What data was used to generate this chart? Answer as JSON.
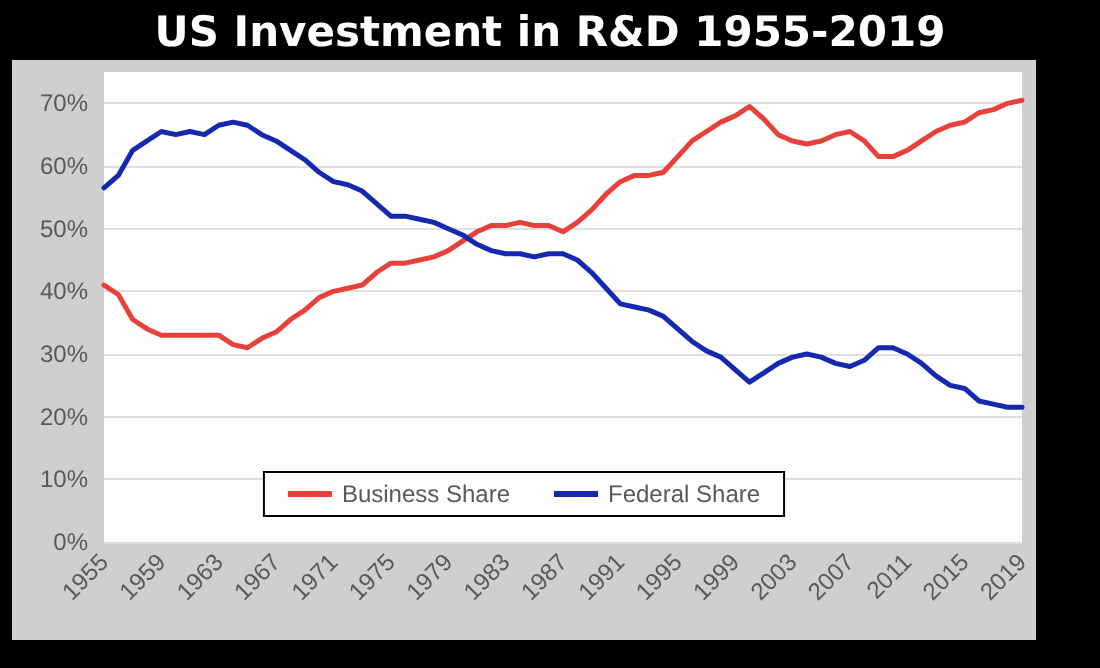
{
  "chart_data": {
    "type": "line",
    "title": "US Investment in R&D 1955-2019",
    "x": [
      1955,
      1956,
      1957,
      1958,
      1959,
      1960,
      1961,
      1962,
      1963,
      1964,
      1965,
      1966,
      1967,
      1968,
      1969,
      1970,
      1971,
      1972,
      1973,
      1974,
      1975,
      1976,
      1977,
      1978,
      1979,
      1980,
      1981,
      1982,
      1983,
      1984,
      1985,
      1986,
      1987,
      1988,
      1989,
      1990,
      1991,
      1992,
      1993,
      1994,
      1995,
      1996,
      1997,
      1998,
      1999,
      2000,
      2001,
      2002,
      2003,
      2004,
      2005,
      2006,
      2007,
      2008,
      2009,
      2010,
      2011,
      2012,
      2013,
      2014,
      2015,
      2016,
      2017,
      2018,
      2019
    ],
    "series": [
      {
        "name": "Business Share",
        "color": "#e8403a",
        "values": [
          41,
          39.5,
          35.5,
          34,
          33,
          33,
          33,
          33,
          33,
          31.5,
          31,
          32.5,
          33.5,
          35.5,
          37,
          39,
          40,
          40.5,
          41,
          43,
          44.5,
          44.5,
          45,
          45.5,
          46.5,
          48,
          49.5,
          50.5,
          50.5,
          51,
          50.5,
          50.5,
          49.5,
          51,
          53,
          55.5,
          57.5,
          58.5,
          58.5,
          59,
          61.5,
          64,
          65.5,
          67,
          68,
          69.5,
          67.5,
          65,
          64,
          63.5,
          64,
          65,
          65.5,
          64,
          61.5,
          61.5,
          62.5,
          64,
          65.5,
          66.5,
          67,
          68.5,
          69,
          70,
          70.5
        ]
      },
      {
        "name": "Federal Share",
        "color": "#1528b0",
        "values": [
          56.5,
          58.5,
          62.5,
          64,
          65.5,
          65,
          65.5,
          65,
          66.5,
          67,
          66.5,
          65,
          64,
          62.5,
          61,
          59,
          57.5,
          57,
          56,
          54,
          52,
          52,
          51.5,
          51,
          50,
          49,
          47.5,
          46.5,
          46,
          46,
          45.5,
          46,
          46,
          45,
          43,
          40.5,
          38,
          37.5,
          37,
          36,
          34,
          32,
          30.5,
          29.5,
          27.5,
          25.5,
          27,
          28.5,
          29.5,
          30,
          29.5,
          28.5,
          28,
          29,
          31,
          31,
          30,
          28.5,
          26.5,
          25,
          24.5,
          22.5,
          22,
          21.5,
          21.5
        ]
      }
    ],
    "xlim": [
      1955,
      2019
    ],
    "xticks": [
      1955,
      1959,
      1963,
      1967,
      1971,
      1975,
      1979,
      1983,
      1987,
      1991,
      1995,
      1999,
      2003,
      2007,
      2011,
      2015,
      2019
    ],
    "ylim": [
      0,
      75
    ],
    "yticks": [
      {
        "value": 0,
        "label": "0%"
      },
      {
        "value": 10,
        "label": "10%"
      },
      {
        "value": 20,
        "label": "20%"
      },
      {
        "value": 30,
        "label": "30%"
      },
      {
        "value": 40,
        "label": "40%"
      },
      {
        "value": 50,
        "label": "50%"
      },
      {
        "value": 60,
        "label": "60%"
      },
      {
        "value": 70,
        "label": "70%"
      }
    ],
    "grid": "y",
    "legend": "bottom",
    "marker": "none",
    "line_style": "solid"
  }
}
